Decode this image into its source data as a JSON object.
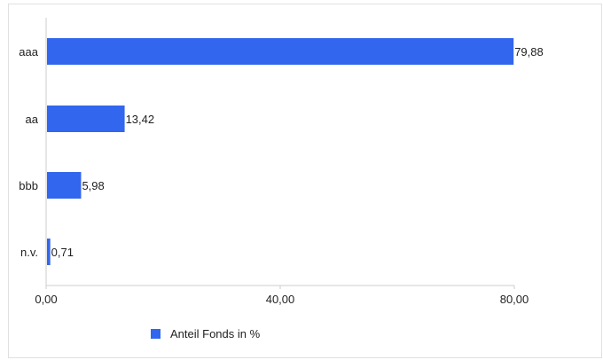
{
  "chart_data": {
    "type": "bar",
    "orientation": "horizontal",
    "categories": [
      "aaa",
      "aa",
      "bbb",
      "n.v."
    ],
    "series": [
      {
        "name": "Anteil Fonds in %",
        "values": [
          79.88,
          13.42,
          5.98,
          0.71
        ]
      }
    ],
    "value_labels": [
      "79,88",
      "13,42",
      "5,98",
      "0,71"
    ],
    "xticks": [
      0,
      40,
      80
    ],
    "xtick_labels": [
      "0,00",
      "40,00",
      "80,00"
    ],
    "xlim": [
      0,
      80
    ],
    "title": "",
    "xlabel": "",
    "ylabel": "",
    "legend_position": "bottom",
    "grid": false,
    "bar_color": "#3366ee",
    "axis_color": "#cccccc"
  }
}
